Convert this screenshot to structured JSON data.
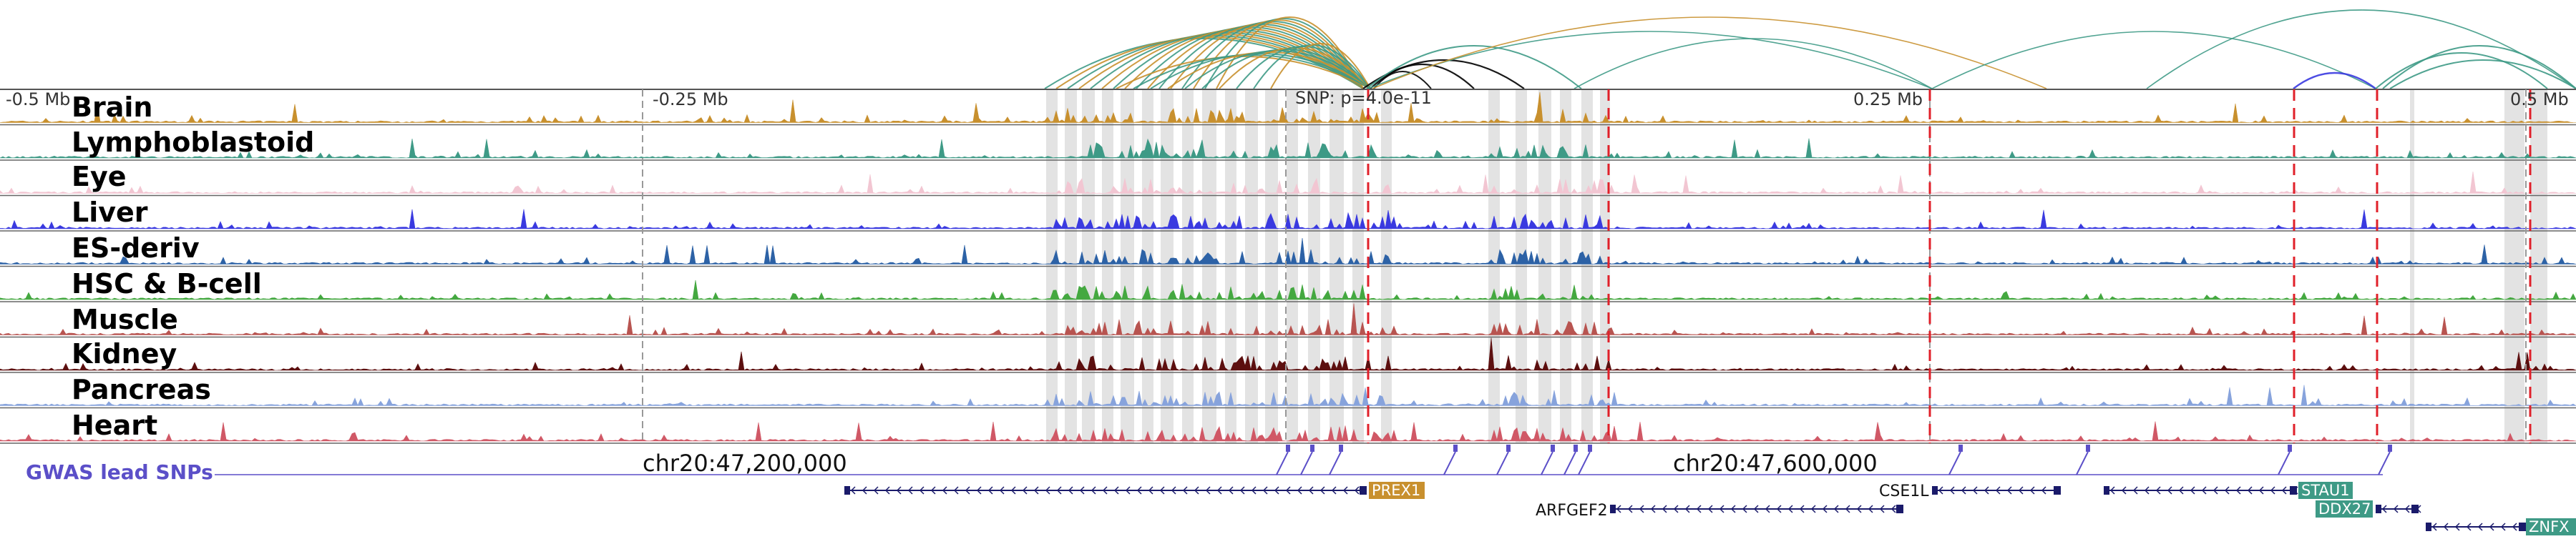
{
  "scale_labels": {
    "left": "-0.5 Mb",
    "mid_left": "-0.25 Mb",
    "mid_right": "0.25 Mb",
    "right": "0.5 Mb"
  },
  "snp_label": "SNP: p=4.0e-11",
  "tracks": [
    {
      "name": "Brain",
      "color": "#c8902e"
    },
    {
      "name": "Lymphoblastoid",
      "color": "#3e9a86"
    },
    {
      "name": "Eye",
      "color": "#f2c6d2"
    },
    {
      "name": "Liver",
      "color": "#3a3ae0"
    },
    {
      "name": "ES-deriv",
      "color": "#2d62a6"
    },
    {
      "name": "HSC & B-cell",
      "color": "#44a840"
    },
    {
      "name": "Muscle",
      "color": "#b85450"
    },
    {
      "name": "Kidney",
      "color": "#5c0f0f"
    },
    {
      "name": "Pancreas",
      "color": "#87a3dc"
    },
    {
      "name": "Heart",
      "color": "#d05866"
    }
  ],
  "gwas_label": "GWAS lead SNPs",
  "gwas_color": "#5b4fc8",
  "coord_labels": {
    "left": "chr20:47,200,000",
    "right": "chr20:47,600,000"
  },
  "genes": [
    {
      "name": "PREX1",
      "boxed": true,
      "box_color": "#c8902e"
    },
    {
      "name": "ARFGEF2",
      "boxed": false
    },
    {
      "name": "CSE1L",
      "boxed": false
    },
    {
      "name": "STAU1",
      "boxed": true,
      "box_color": "#3e9a86"
    },
    {
      "name": "DDX27",
      "boxed": true,
      "box_color": "#3e9a86"
    },
    {
      "name": "ZNFX",
      "boxed": true,
      "box_color": "#3e9a86"
    }
  ],
  "marker_color": "#e0202a",
  "highlight_color": "#d9d9d9"
}
